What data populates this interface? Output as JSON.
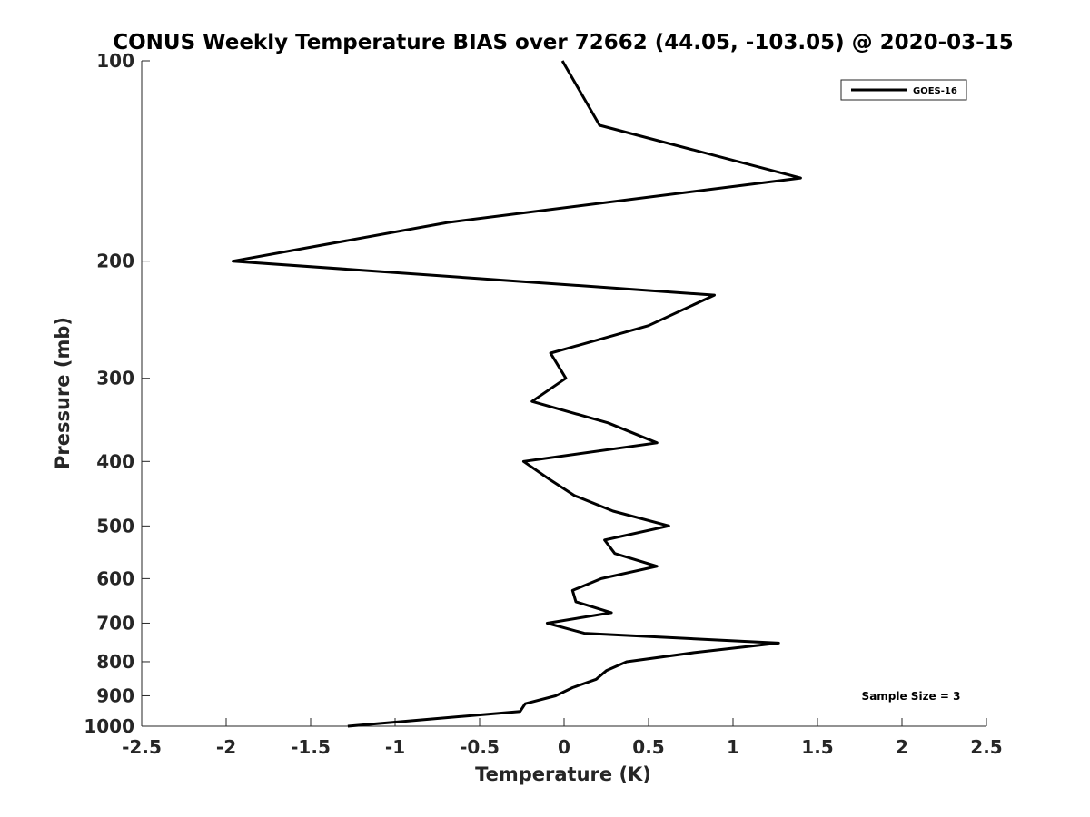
{
  "chart_data": {
    "type": "line",
    "title": "CONUS Weekly Temperature BIAS over 72662 (44.05, -103.05) @ 2020-03-15",
    "xlabel": "Temperature (K)",
    "ylabel": "Pressure (mb)",
    "xlim": [
      -2.5,
      2.5
    ],
    "ylim": [
      1000,
      100
    ],
    "y_scale": "log",
    "y_reversed": true,
    "x_ticks": [
      -2.5,
      -2,
      -1.5,
      -1,
      -0.5,
      0,
      0.5,
      1,
      1.5,
      2,
      2.5
    ],
    "x_tick_labels": [
      "-2.5",
      "-2",
      "-1.5",
      "-1",
      "-0.5",
      "0",
      "0.5",
      "1",
      "1.5",
      "2",
      "2.5"
    ],
    "y_ticks": [
      100,
      200,
      300,
      400,
      500,
      600,
      700,
      800,
      900,
      1000
    ],
    "y_tick_labels": [
      "100",
      "200",
      "300",
      "400",
      "500",
      "600",
      "700",
      "800",
      "900",
      "1000"
    ],
    "grid": false,
    "legend_position": "top-right",
    "series": [
      {
        "name": "GOES-16",
        "color": "#000000",
        "points": [
          {
            "x": -0.01,
            "y": 100
          },
          {
            "x": 0.21,
            "y": 125
          },
          {
            "x": 1.4,
            "y": 150
          },
          {
            "x": -0.69,
            "y": 175
          },
          {
            "x": -1.96,
            "y": 200
          },
          {
            "x": 0.89,
            "y": 225
          },
          {
            "x": 0.5,
            "y": 250
          },
          {
            "x": -0.08,
            "y": 275
          },
          {
            "x": 0.01,
            "y": 300
          },
          {
            "x": -0.19,
            "y": 325
          },
          {
            "x": 0.26,
            "y": 350
          },
          {
            "x": 0.55,
            "y": 375
          },
          {
            "x": -0.24,
            "y": 400
          },
          {
            "x": -0.09,
            "y": 425
          },
          {
            "x": 0.06,
            "y": 450
          },
          {
            "x": 0.29,
            "y": 475
          },
          {
            "x": 0.62,
            "y": 500
          },
          {
            "x": 0.24,
            "y": 525
          },
          {
            "x": 0.3,
            "y": 550
          },
          {
            "x": 0.55,
            "y": 575
          },
          {
            "x": 0.22,
            "y": 600
          },
          {
            "x": 0.05,
            "y": 625
          },
          {
            "x": 0.07,
            "y": 650
          },
          {
            "x": 0.28,
            "y": 675
          },
          {
            "x": -0.1,
            "y": 700
          },
          {
            "x": 0.12,
            "y": 725
          },
          {
            "x": 1.27,
            "y": 750
          },
          {
            "x": 0.77,
            "y": 775
          },
          {
            "x": 0.37,
            "y": 800
          },
          {
            "x": 0.25,
            "y": 825
          },
          {
            "x": 0.19,
            "y": 850
          },
          {
            "x": 0.05,
            "y": 875
          },
          {
            "x": -0.05,
            "y": 900
          },
          {
            "x": -0.23,
            "y": 925
          },
          {
            "x": -0.26,
            "y": 950
          },
          {
            "x": -1.28,
            "y": 1000
          }
        ]
      }
    ],
    "annotations": [
      "Sample Size = 3"
    ]
  }
}
